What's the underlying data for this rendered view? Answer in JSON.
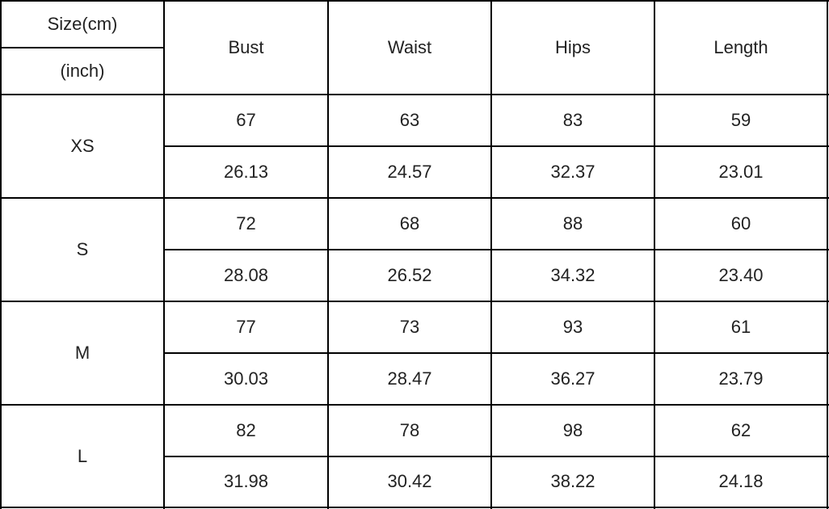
{
  "header": {
    "size_cm": "Size(cm)",
    "size_inch": "(inch)",
    "columns": [
      "Bust",
      "Waist",
      "Hips",
      "Length"
    ]
  },
  "rows": [
    {
      "size": "XS",
      "cm": [
        "67",
        "63",
        "83",
        "59"
      ],
      "inch": [
        "26.13",
        "24.57",
        "32.37",
        "23.01"
      ]
    },
    {
      "size": "S",
      "cm": [
        "72",
        "68",
        "88",
        "60"
      ],
      "inch": [
        "28.08",
        "26.52",
        "34.32",
        "23.40"
      ]
    },
    {
      "size": "M",
      "cm": [
        "77",
        "73",
        "93",
        "61"
      ],
      "inch": [
        "30.03",
        "28.47",
        "36.27",
        "23.79"
      ]
    },
    {
      "size": "L",
      "cm": [
        "82",
        "78",
        "98",
        "62"
      ],
      "inch": [
        "31.98",
        "30.42",
        "38.22",
        "24.18"
      ]
    }
  ]
}
